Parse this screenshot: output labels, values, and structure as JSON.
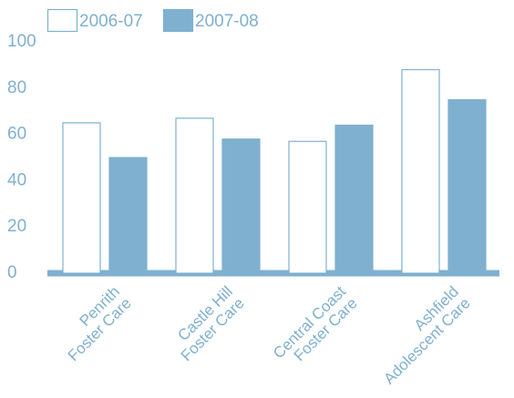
{
  "chart_data": {
    "type": "bar",
    "categories": [
      [
        "Penrith",
        "Foster Care"
      ],
      [
        "Castle Hill",
        "Foster Care"
      ],
      [
        "Central Coast",
        "Foster Care"
      ],
      [
        "Ashfield",
        "Adolescent Care"
      ]
    ],
    "series": [
      {
        "name": "2006-07",
        "color": "#ffffff",
        "edge": "#7fb0cf",
        "values": [
          65,
          67,
          57,
          88
        ]
      },
      {
        "name": "2007-08",
        "color": "#7fb0cf",
        "values": [
          50,
          58,
          64,
          75
        ]
      }
    ],
    "ylim": [
      0,
      100
    ],
    "yticks": [
      0,
      20,
      40,
      60,
      80,
      100
    ]
  }
}
